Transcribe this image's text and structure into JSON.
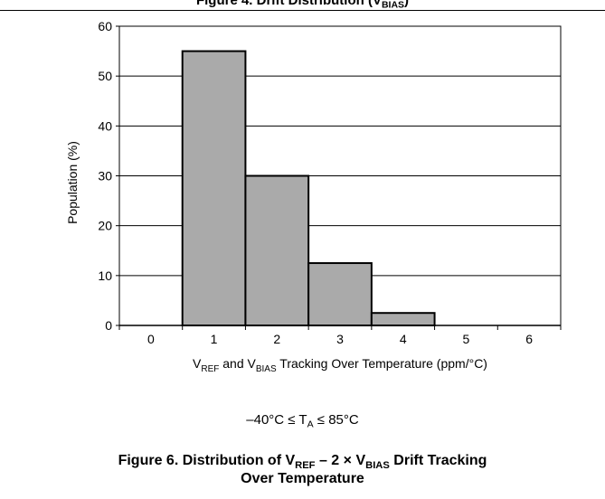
{
  "header": {
    "title_main": "Figure 4. Drift Distribution (V",
    "title_sub": "BIAS",
    "title_end": ")"
  },
  "chart_data": {
    "type": "bar",
    "categories": [
      "0",
      "1",
      "2",
      "3",
      "4",
      "5",
      "6"
    ],
    "values": [
      0,
      55,
      30,
      12.5,
      2.5,
      0,
      0
    ],
    "ylim": [
      0,
      60
    ],
    "yticks": [
      "0",
      "10",
      "20",
      "30",
      "40",
      "50",
      "60"
    ],
    "ylabel": "Population (%)",
    "xlabel": {
      "p1": "V",
      "s1": "REF",
      "p2": " and V",
      "s2": "BIAS",
      "p3": " Tracking Over Temperature (ppm/°C)"
    },
    "grid": true,
    "bar_color": "#aaaaaa"
  },
  "condition": {
    "p1": "–40°C ≤ T",
    "s1": "A",
    "p2": " ≤ 85°C"
  },
  "caption": {
    "p1": "Figure 6. Distribution of V",
    "s1": "REF",
    "p2": " – 2 × V",
    "s2": "BIAS",
    "p3": " Drift Tracking",
    "line2": "Over Temperature"
  }
}
